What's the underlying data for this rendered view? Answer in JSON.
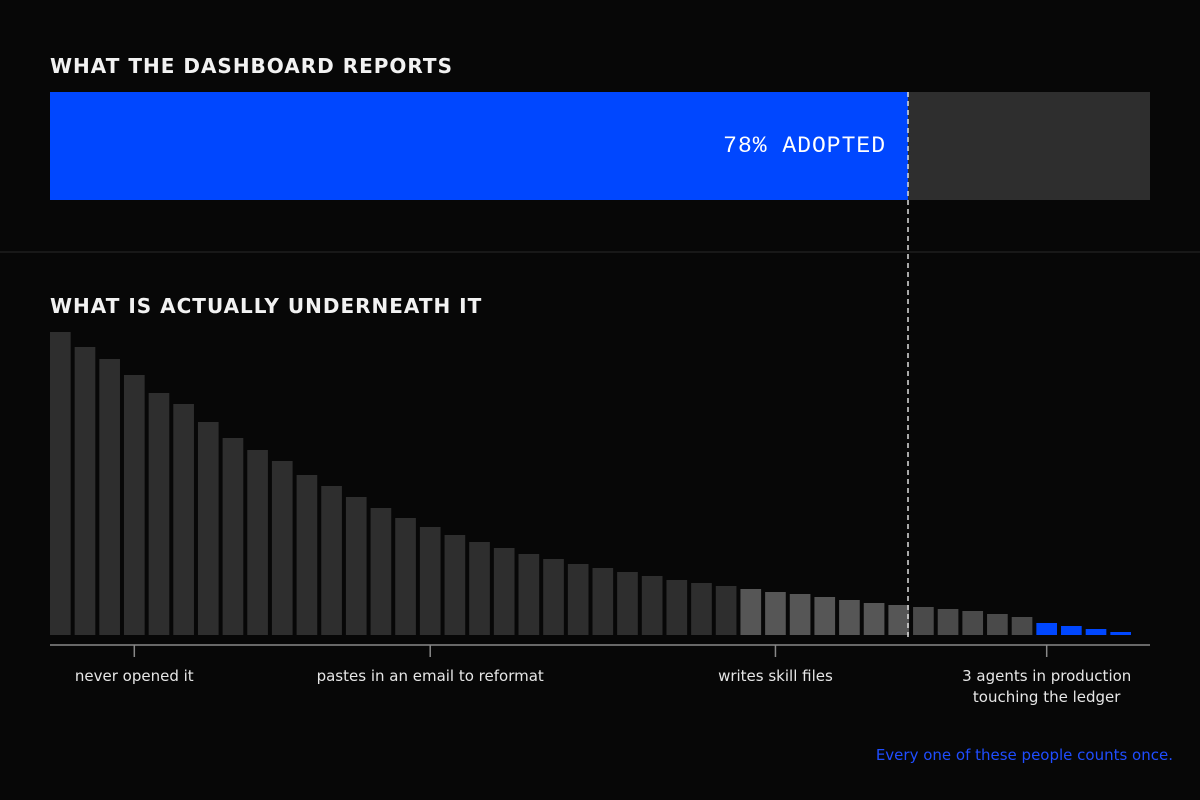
{
  "chart_data": [
    {
      "type": "progress",
      "title": "WHAT THE DASHBOARD REPORTS",
      "values": [
        78
      ],
      "value_labels": [
        "78% ADOPTED"
      ],
      "xlim": [
        0,
        100
      ],
      "color": "#0047ff",
      "track_color": "#2e2e2e"
    },
    {
      "type": "bar",
      "title": "WHAT IS ACTUALLY UNDERNEATH IT",
      "categories": [
        null,
        null,
        null,
        "never opened it",
        null,
        null,
        null,
        null,
        null,
        null,
        null,
        null,
        null,
        null,
        null,
        "pastes in an email to reformat",
        null,
        null,
        null,
        null,
        null,
        null,
        null,
        null,
        null,
        null,
        null,
        null,
        null,
        "writes skill files",
        null,
        null,
        null,
        null,
        null,
        null,
        null,
        null,
        null,
        null,
        "3 agents in production\ntouching the ledger",
        null,
        null,
        null
      ],
      "values": [
        303,
        288,
        276,
        260,
        242,
        231,
        213,
        197,
        185,
        174,
        160,
        149,
        138,
        127,
        117,
        108,
        100,
        93,
        87,
        81,
        76,
        71,
        67,
        63,
        59,
        55,
        52,
        49,
        46,
        43,
        41,
        38,
        35,
        32,
        30,
        28,
        26,
        24,
        21,
        18,
        12,
        9,
        6,
        3
      ],
      "colors": [
        "#2e2e2e",
        "#2e2e2e",
        "#2e2e2e",
        "#2e2e2e",
        "#2e2e2e",
        "#2e2e2e",
        "#2e2e2e",
        "#2e2e2e",
        "#2e2e2e",
        "#2e2e2e",
        "#2e2e2e",
        "#2e2e2e",
        "#2e2e2e",
        "#2e2e2e",
        "#2e2e2e",
        "#2e2e2e",
        "#2e2e2e",
        "#2e2e2e",
        "#2e2e2e",
        "#2e2e2e",
        "#2e2e2e",
        "#2e2e2e",
        "#2e2e2e",
        "#2e2e2e",
        "#2e2e2e",
        "#2e2e2e",
        "#2e2e2e",
        "#2e2e2e",
        "#565656",
        "#565656",
        "#565656",
        "#565656",
        "#565656",
        "#565656",
        "#565656",
        "#4a4a4a",
        "#4a4a4a",
        "#4a4a4a",
        "#4a4a4a",
        "#4a4a4a",
        "#0047ff",
        "#0047ff",
        "#0047ff",
        "#0047ff"
      ],
      "note": "Every one of these people counts once."
    }
  ]
}
